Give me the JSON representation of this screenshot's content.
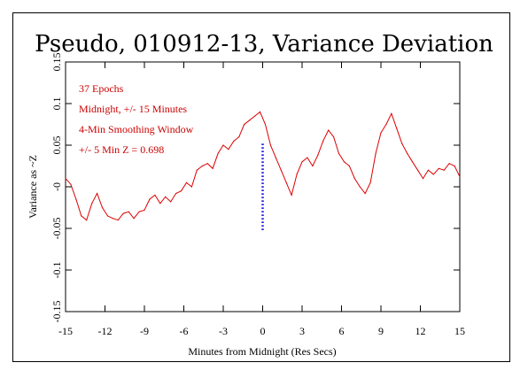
{
  "chart_data": {
    "type": "line",
    "title": "Pseudo, 010912-13, Variance Deviation",
    "xlabel": "Minutes from Midnight (Res Secs)",
    "ylabel": "Variance as ~Z",
    "xlim": [
      -15,
      15
    ],
    "ylim": [
      -0.15,
      0.15
    ],
    "x_ticks": [
      -15,
      -12,
      -9,
      -6,
      -3,
      0,
      3,
      6,
      9,
      12,
      15
    ],
    "x_tick_labels": [
      "-15",
      "-12",
      "-9",
      "-6",
      "-3",
      "0",
      "3",
      "6",
      "9",
      "12",
      "15"
    ],
    "y_ticks": [
      -0.15,
      -0.1,
      -0.05,
      0,
      0.05,
      0.1,
      0.15
    ],
    "y_tick_labels": [
      "-0.15",
      "-0.1",
      "-0.05",
      "-0",
      "0.05",
      "0.1",
      "0.15"
    ],
    "annotations": [
      "37 Epochs",
      "Midnight, +/- 15 Minutes",
      "4-Min Smoothing Window",
      "+/- 5 Min Z = 0.698"
    ],
    "series": [
      {
        "color": "#dd0000",
        "x": [
          -15,
          -14.6,
          -14.2,
          -13.8,
          -13.4,
          -13.0,
          -12.6,
          -12.2,
          -11.8,
          -11.4,
          -11.0,
          -10.6,
          -10.2,
          -9.8,
          -9.4,
          -9.0,
          -8.6,
          -8.2,
          -7.8,
          -7.4,
          -7.0,
          -6.6,
          -6.2,
          -5.8,
          -5.4,
          -5.0,
          -4.6,
          -4.2,
          -3.8,
          -3.4,
          -3.0,
          -2.6,
          -2.2,
          -1.8,
          -1.4,
          -1.0,
          -0.6,
          -0.2,
          0.2,
          0.6,
          1.0,
          1.4,
          1.8,
          2.2,
          2.6,
          3.0,
          3.4,
          3.8,
          4.2,
          4.6,
          5.0,
          5.4,
          5.8,
          6.2,
          6.6,
          7.0,
          7.4,
          7.8,
          8.2,
          8.6,
          9.0,
          9.4,
          9.8,
          10.2,
          10.6,
          11.0,
          11.4,
          11.8,
          12.2,
          12.6,
          13.0,
          13.4,
          13.8,
          14.2,
          14.6,
          15.0
        ],
        "values": [
          0.01,
          0.003,
          -0.015,
          -0.035,
          -0.04,
          -0.02,
          -0.008,
          -0.025,
          -0.035,
          -0.038,
          -0.04,
          -0.032,
          -0.03,
          -0.038,
          -0.03,
          -0.028,
          -0.015,
          -0.01,
          -0.02,
          -0.012,
          -0.018,
          -0.008,
          -0.005,
          0.005,
          0.0,
          0.02,
          0.025,
          0.028,
          0.022,
          0.04,
          0.05,
          0.045,
          0.055,
          0.06,
          0.075,
          0.08,
          0.085,
          0.09,
          0.075,
          0.05,
          0.035,
          0.02,
          0.005,
          -0.01,
          0.015,
          0.03,
          0.035,
          0.025,
          0.038,
          0.055,
          0.068,
          0.06,
          0.04,
          0.03,
          0.025,
          0.01,
          0.0,
          -0.008,
          0.005,
          0.04,
          0.065,
          0.075,
          0.088,
          0.07,
          0.052,
          0.04,
          0.03,
          0.02,
          0.01,
          0.02,
          0.015,
          0.022,
          0.02,
          0.028,
          0.025,
          0.012
        ]
      },
      {
        "color": "#0000dd",
        "style": "dotted",
        "x": [
          0,
          0
        ],
        "values": [
          -0.052,
          0.052
        ]
      }
    ]
  }
}
